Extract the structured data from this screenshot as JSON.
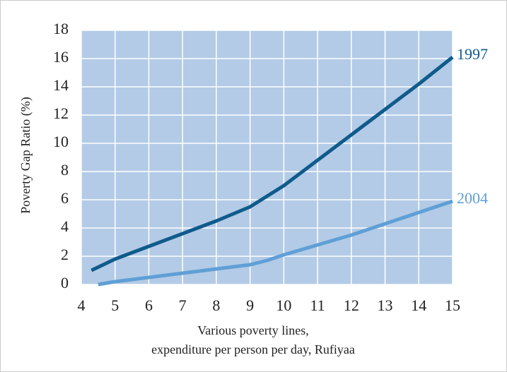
{
  "chart_data": {
    "type": "line",
    "y_label": "Poverty Gap Ratio (%)",
    "x_label": [
      "Various poverty lines,",
      "expenditure per person per day, Rufiyaa"
    ],
    "xlim": [
      4,
      15
    ],
    "xticks": [
      4,
      5,
      6,
      7,
      8,
      9,
      10,
      11,
      12,
      13,
      14,
      15
    ],
    "ylim": [
      0,
      18
    ],
    "yticks": [
      0,
      2,
      4,
      6,
      8,
      10,
      12,
      14,
      16,
      18
    ],
    "grid": true,
    "background": "#b3cbe6",
    "series": [
      {
        "name": "1997",
        "color": "#0f5b8c",
        "x": [
          4.3,
          5,
          6,
          7,
          8,
          9,
          10,
          11,
          12,
          13,
          14,
          15
        ],
        "values": [
          1.0,
          1.8,
          2.7,
          3.6,
          4.5,
          5.5,
          7.0,
          8.8,
          10.6,
          12.4,
          14.2,
          16.1
        ]
      },
      {
        "name": "2004",
        "color": "#5f9fd6",
        "x": [
          4.5,
          5,
          6,
          7,
          8,
          9,
          9.5,
          10,
          11,
          12,
          13,
          14,
          15
        ],
        "values": [
          0,
          0.2,
          0.5,
          0.8,
          1.1,
          1.4,
          1.7,
          2.1,
          2.8,
          3.5,
          4.3,
          5.1,
          5.9
        ]
      }
    ]
  }
}
